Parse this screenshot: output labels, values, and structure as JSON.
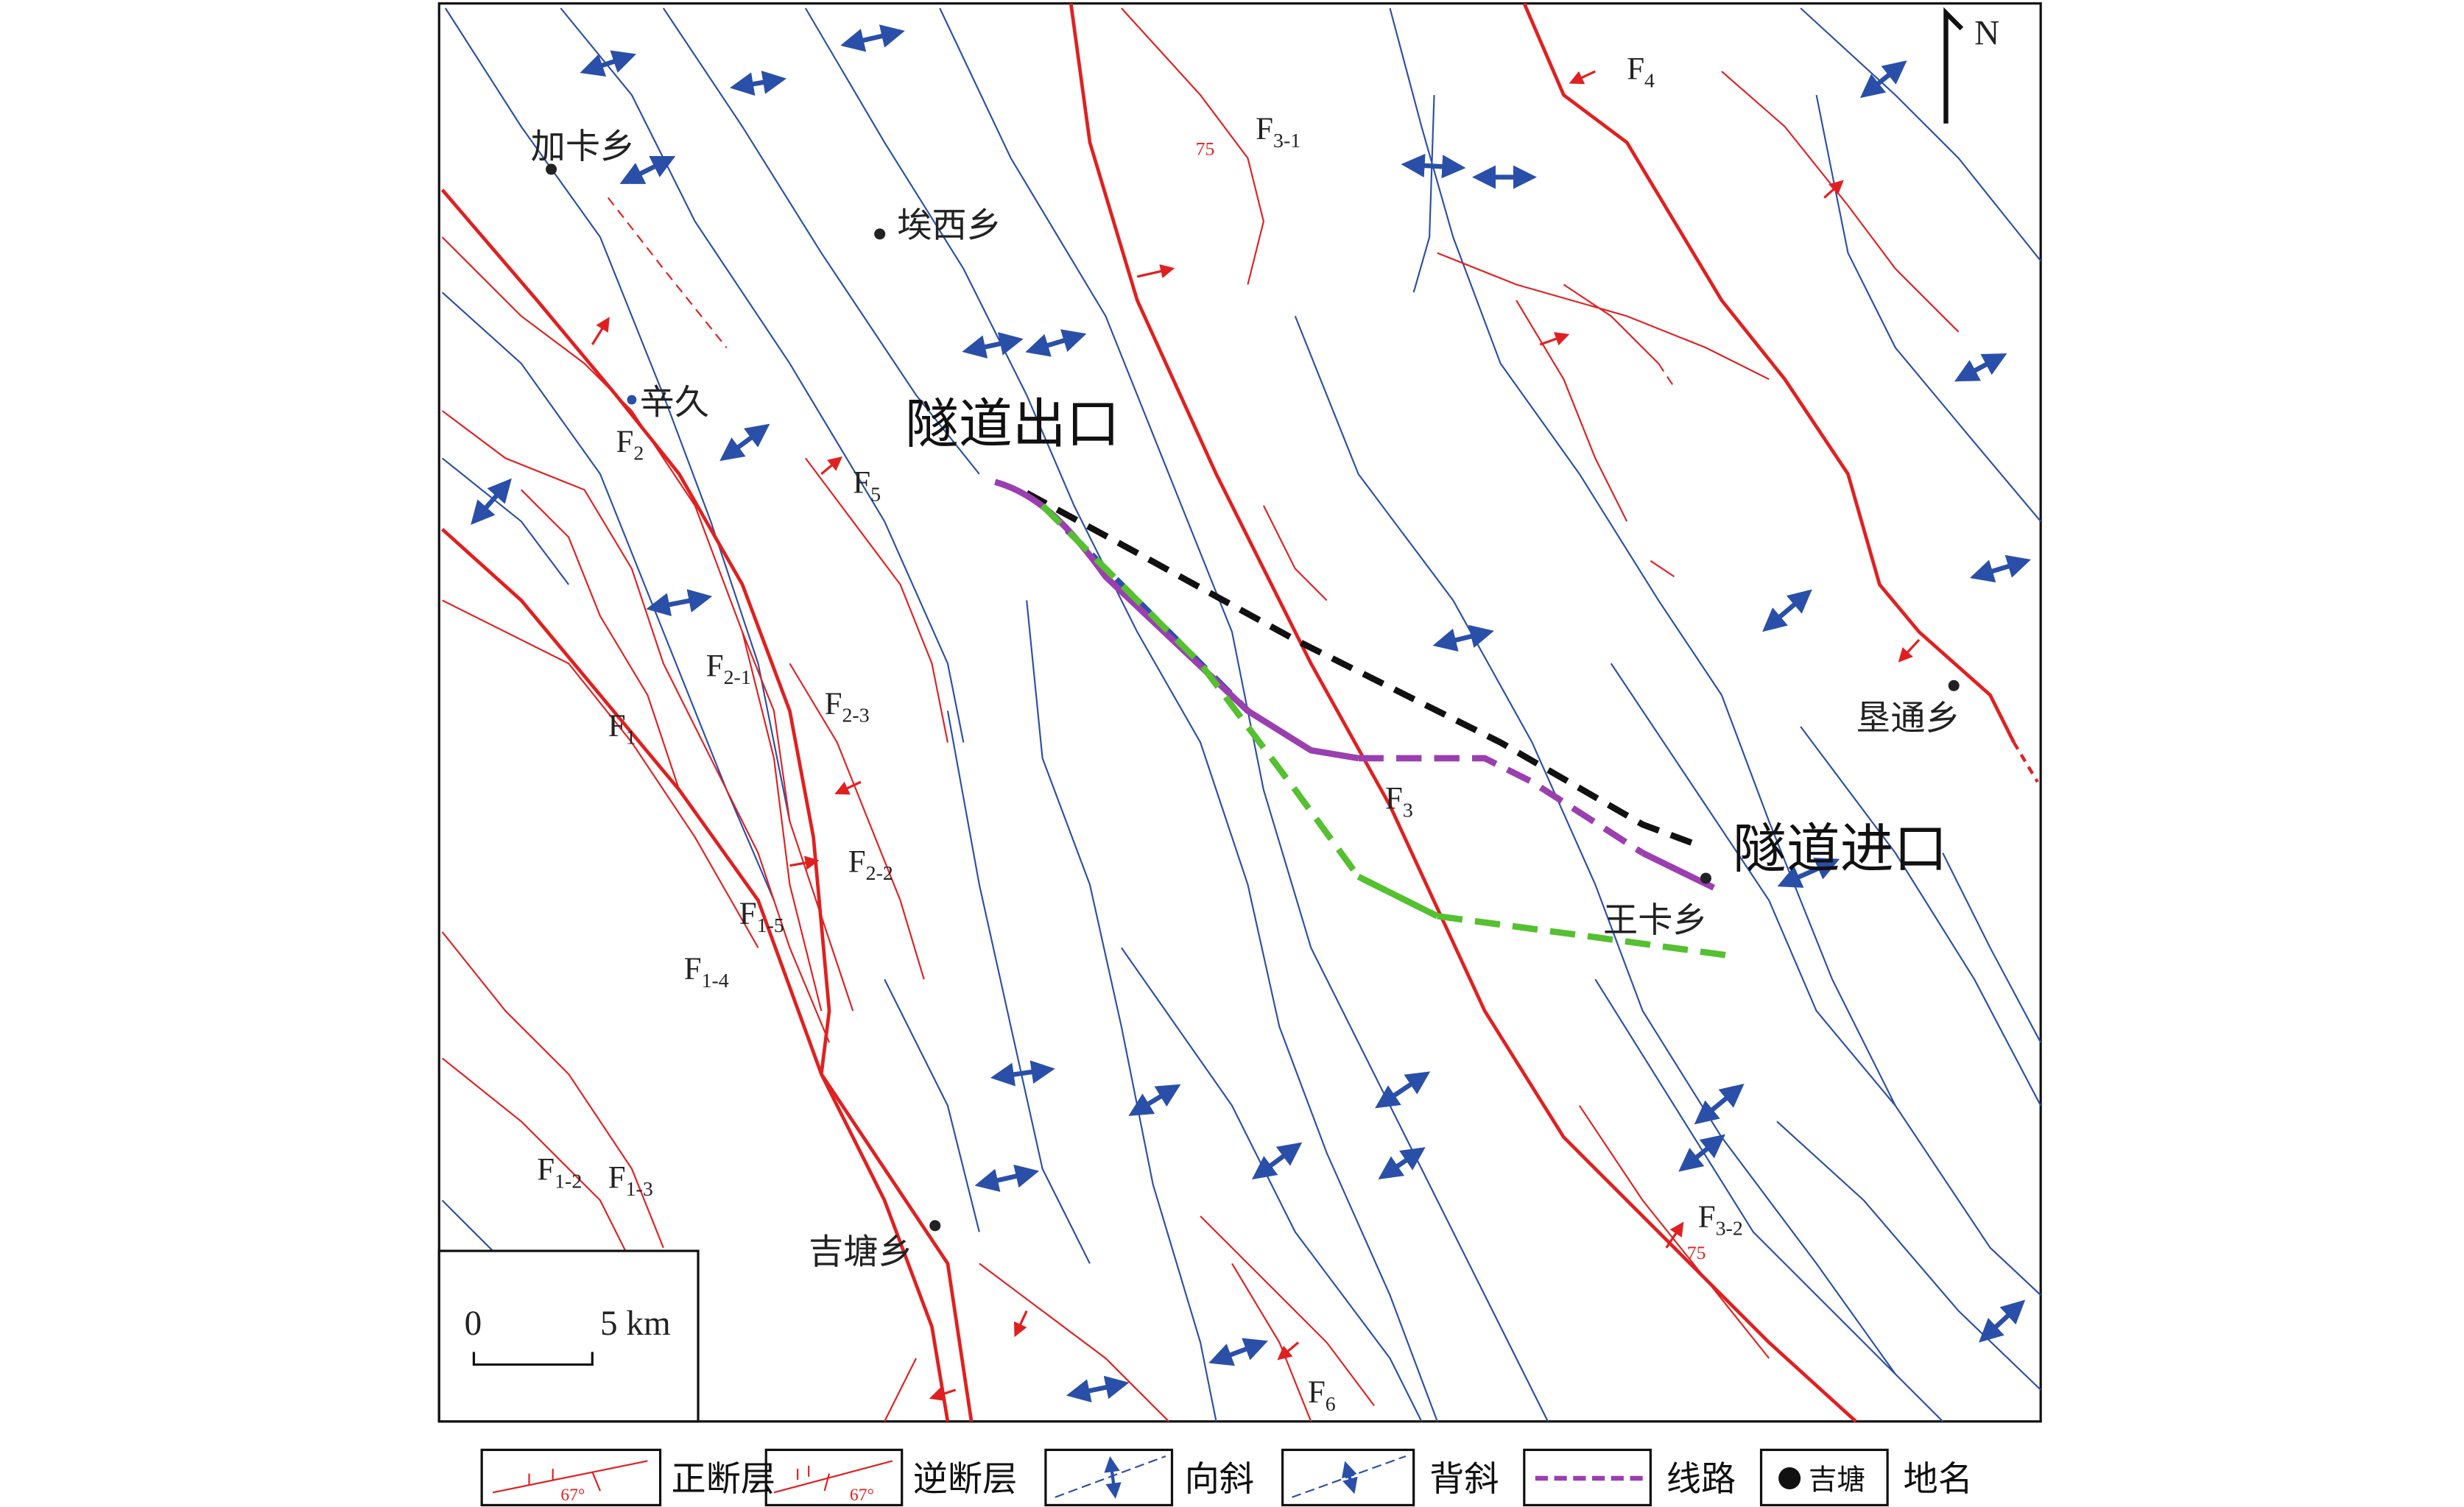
{
  "north": "N",
  "places": [
    "加卡乡",
    "埃西乡",
    "辛久",
    "王卡乡",
    "垦通乡",
    "吉塘乡"
  ],
  "tunnel": [
    "隧道出口",
    "隧道进口"
  ],
  "faults": [
    {
      "main": "F",
      "sub": "4"
    },
    {
      "main": "F",
      "sub": "3-1"
    },
    {
      "main": "F",
      "sub": "2"
    },
    {
      "main": "F",
      "sub": "5"
    },
    {
      "main": "F",
      "sub": "2-1"
    },
    {
      "main": "F",
      "sub": "1"
    },
    {
      "main": "F",
      "sub": "2-3"
    },
    {
      "main": "F",
      "sub": "3"
    },
    {
      "main": "F",
      "sub": "2-2"
    },
    {
      "main": "F",
      "sub": "1-5"
    },
    {
      "main": "F",
      "sub": "1-4"
    },
    {
      "main": "F",
      "sub": "1-2"
    },
    {
      "main": "F",
      "sub": "1-3"
    },
    {
      "main": "F",
      "sub": "6"
    },
    {
      "main": "F",
      "sub": "3-2"
    }
  ],
  "dips": [
    "75",
    "75"
  ],
  "scale": {
    "zero": "0",
    "end": "5 km"
  },
  "legend": {
    "normal": "正断层",
    "reverse": "逆断层",
    "syncline": "向斜",
    "anticline": "背斜",
    "route": "线路",
    "sample": "吉塘",
    "place": "地名",
    "angle": "67°"
  }
}
